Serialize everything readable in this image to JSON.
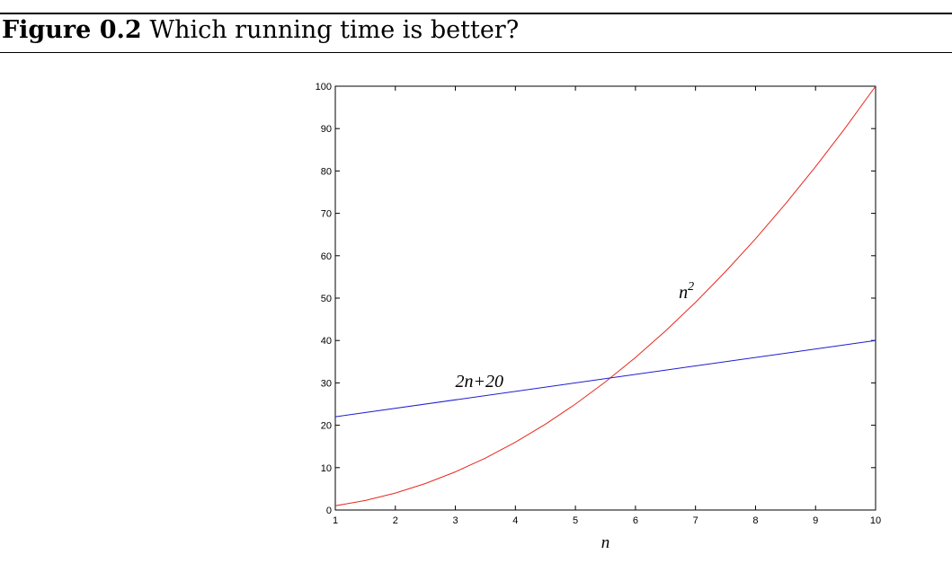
{
  "figure": {
    "label": "Figure 0.2",
    "title": "Which running time is better?"
  },
  "chart_data": {
    "type": "line",
    "xlabel": "n",
    "ylabel": "",
    "xlim": [
      1,
      10
    ],
    "ylim": [
      0,
      100
    ],
    "xticks": [
      1,
      2,
      3,
      4,
      5,
      6,
      7,
      8,
      9,
      10
    ],
    "yticks": [
      0,
      10,
      20,
      30,
      40,
      50,
      60,
      70,
      80,
      90,
      100
    ],
    "grid": false,
    "legend": "none",
    "series": [
      {
        "label": "n^2",
        "color": "#e8281e",
        "x": [
          1,
          1.5,
          2,
          2.5,
          3,
          3.5,
          4,
          4.5,
          5,
          5.5,
          6,
          6.5,
          7,
          7.5,
          8,
          8.5,
          9,
          9.5,
          10
        ],
        "y": [
          1,
          2.25,
          4,
          6.25,
          9,
          12.25,
          16,
          20.25,
          25,
          30.25,
          36,
          42.25,
          49,
          56.25,
          64,
          72.25,
          81,
          90.25,
          100
        ]
      },
      {
        "label": "2n+20",
        "color": "#1c1cd0",
        "x": [
          1,
          10
        ],
        "y": [
          22,
          40
        ]
      }
    ],
    "annotations": [
      {
        "text_base": "n",
        "text_sup": "2",
        "x": 6.85,
        "y": 50
      },
      {
        "text_base": "2n+20",
        "text_sup": "",
        "x": 3.4,
        "y": 29
      }
    ]
  }
}
